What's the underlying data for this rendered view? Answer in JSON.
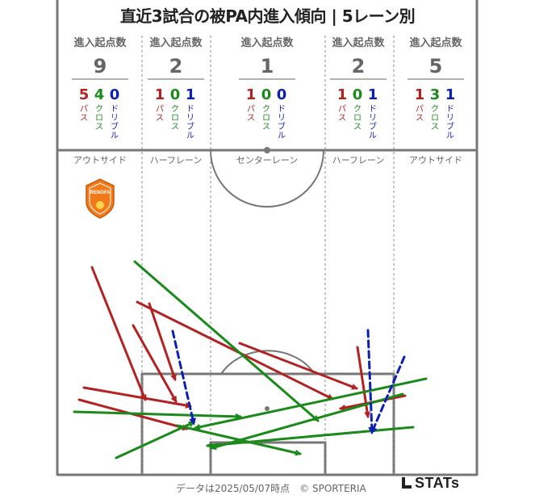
{
  "title": "直近3試合の被PA内進入傾向 | 5レーン別",
  "colors": {
    "pass": "#b22222",
    "cross": "#1a8a1a",
    "dribble": "#0b1fb5",
    "line": "#777777",
    "text": "#666666"
  },
  "lanes": [
    {
      "header": "進入起点数",
      "total": "9",
      "pass": "5",
      "cross": "4",
      "dribble": "0",
      "zone": "アウトサイド"
    },
    {
      "header": "進入起点数",
      "total": "2",
      "pass": "1",
      "cross": "0",
      "dribble": "1",
      "zone": "ハーフレーン"
    },
    {
      "header": "進入起点数",
      "total": "1",
      "pass": "1",
      "cross": "0",
      "dribble": "0",
      "zone": "センターレーン"
    },
    {
      "header": "進入起点数",
      "total": "2",
      "pass": "1",
      "cross": "0",
      "dribble": "1",
      "zone": "ハーフレーン"
    },
    {
      "header": "進入起点数",
      "total": "5",
      "pass": "1",
      "cross": "3",
      "dribble": "1",
      "zone": "アウトサイド"
    }
  ],
  "type_labels": {
    "pass": "パス",
    "cross": "クロス",
    "dribble": "ドリブル"
  },
  "logo": {
    "text": "RENOFA",
    "icon": "renofa-crest-icon"
  },
  "footer": "データは2025/05/07時点　© SPORTERIA",
  "brand": "STATs",
  "chart_data": {
    "type": "pitch-arrows",
    "categories": [
      "アウトサイド",
      "ハーフレーン",
      "センターレーン",
      "ハーフレーン",
      "アウトサイド"
    ],
    "series": [
      {
        "name": "パス",
        "values": [
          5,
          1,
          1,
          1,
          1
        ]
      },
      {
        "name": "クロス",
        "values": [
          4,
          0,
          0,
          0,
          3
        ]
      },
      {
        "name": "ドリブル",
        "values": [
          0,
          1,
          0,
          1,
          1
        ]
      }
    ],
    "arrows": [
      {
        "kind": "pass",
        "from": [
          114,
          331
        ],
        "to": [
          180,
          495
        ]
      },
      {
        "kind": "pass",
        "from": [
          165,
          403
        ],
        "to": [
          218,
          497
        ]
      },
      {
        "kind": "pass",
        "from": [
          185,
          376
        ],
        "to": [
          217,
          470
        ]
      },
      {
        "kind": "pass",
        "from": [
          104,
          480
        ],
        "to": [
          236,
          503
        ]
      },
      {
        "kind": "pass",
        "from": [
          98,
          495
        ],
        "to": [
          232,
          531
        ]
      },
      {
        "kind": "pass",
        "from": [
          170,
          374
        ],
        "to": [
          412,
          494
        ]
      },
      {
        "kind": "pass",
        "from": [
          297,
          425
        ],
        "to": [
          442,
          481
        ]
      },
      {
        "kind": "pass",
        "from": [
          443,
          430
        ],
        "to": [
          456,
          516
        ]
      },
      {
        "kind": "pass",
        "from": [
          502,
          490
        ],
        "to": [
          422,
          506
        ]
      },
      {
        "kind": "cross",
        "from": [
          167,
          324
        ],
        "to": [
          394,
          521
        ]
      },
      {
        "kind": "cross",
        "from": [
          92,
          510
        ],
        "to": [
          298,
          516
        ]
      },
      {
        "kind": "cross",
        "from": [
          144,
          567
        ],
        "to": [
          240,
          523
        ]
      },
      {
        "kind": "cross",
        "from": [
          220,
          527
        ],
        "to": [
          372,
          562
        ]
      },
      {
        "kind": "cross",
        "from": [
          528,
          469
        ],
        "to": [
          242,
          530
        ]
      },
      {
        "kind": "cross",
        "from": [
          499,
          488
        ],
        "to": [
          262,
          555
        ]
      },
      {
        "kind": "cross",
        "from": [
          512,
          529
        ],
        "to": [
          257,
          552
        ]
      },
      {
        "kind": "dribble",
        "from": [
          214,
          410
        ],
        "to": [
          240,
          524
        ]
      },
      {
        "kind": "dribble",
        "from": [
          456,
          409
        ],
        "to": [
          461,
          535
        ]
      },
      {
        "kind": "dribble",
        "from": [
          501,
          442
        ],
        "to": [
          461,
          535
        ]
      }
    ]
  }
}
